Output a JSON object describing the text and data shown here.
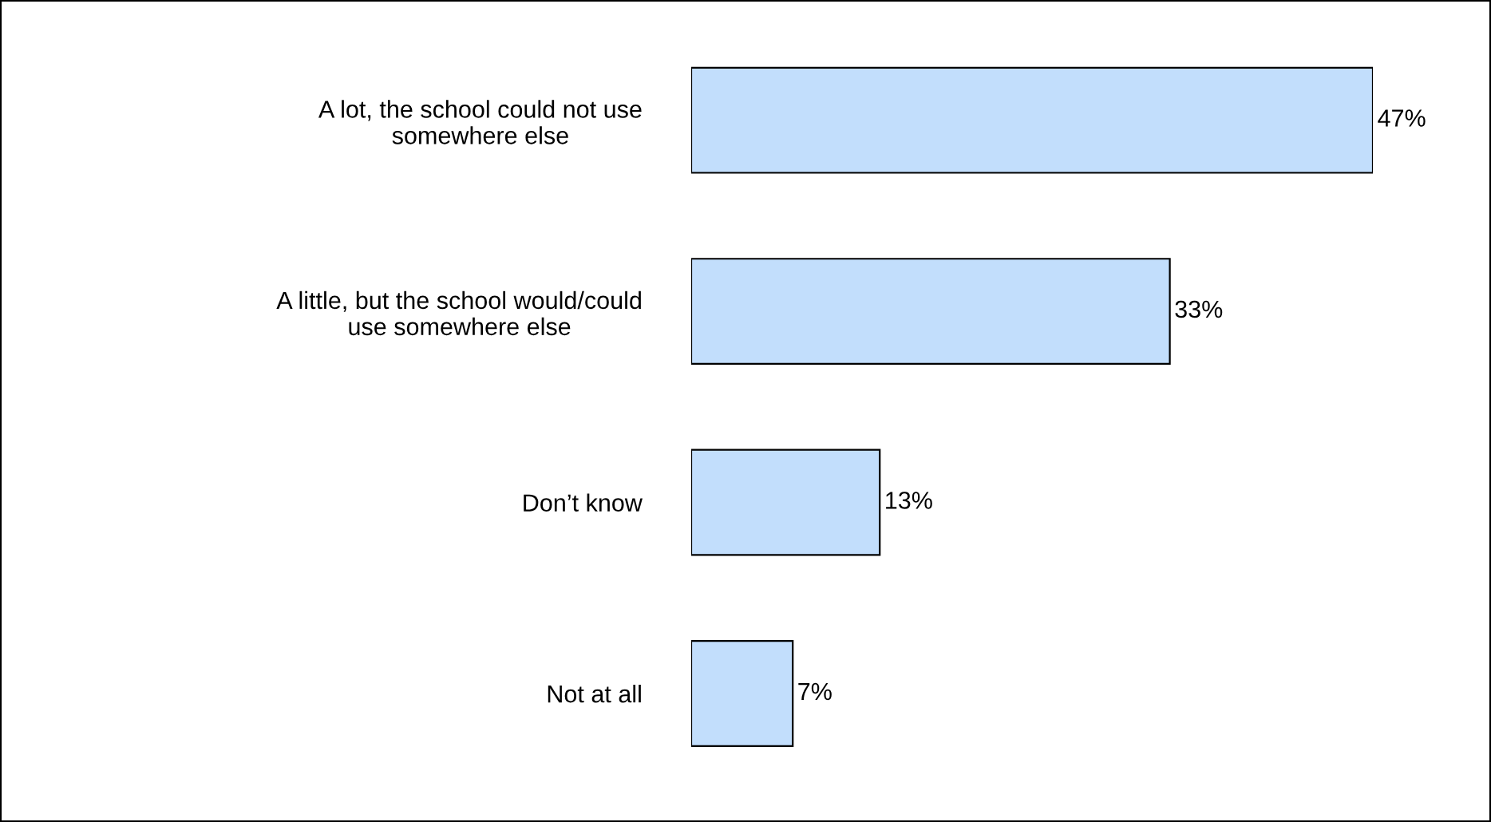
{
  "chart_data": {
    "type": "bar",
    "orientation": "horizontal",
    "categories": [
      "A lot, the school could not use\nsomewhere else",
      "A little, but the school would/could\nuse somewhere else",
      "Don’t know",
      "Not at all"
    ],
    "values": [
      47,
      33,
      13,
      7
    ],
    "color": "#c2defc",
    "value_labels": [
      "47%",
      "33%",
      "13%",
      "7%"
    ],
    "grid": false,
    "legend": false
  }
}
